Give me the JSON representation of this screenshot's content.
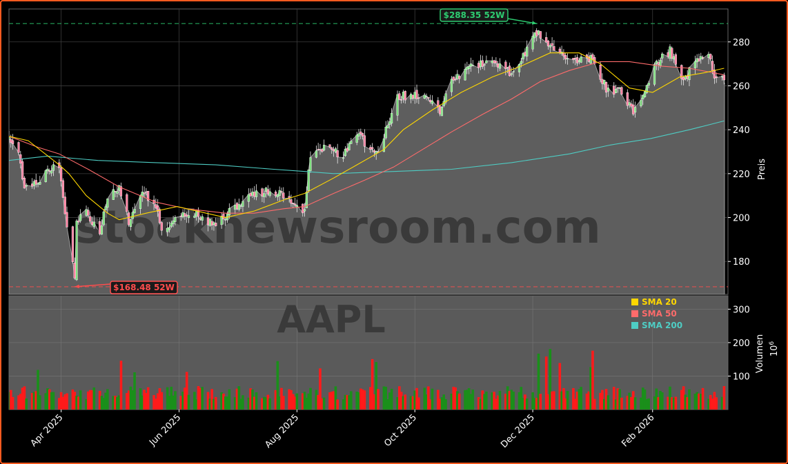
{
  "chart_data": {
    "type": "candlestick",
    "ticker": "AAPL",
    "watermark": "stocknewsroom.com",
    "price_axis": {
      "label": "Preis",
      "ylim": [
        165,
        295
      ],
      "ticks": [
        180,
        200,
        220,
        240,
        260,
        280
      ]
    },
    "volume_axis": {
      "label": "Volumen",
      "unit_label": "10^6",
      "ylim": [
        0,
        340
      ],
      "ticks": [
        100,
        200,
        300
      ]
    },
    "x_axis": {
      "ticks": [
        "Apr 2025",
        "Jun 2025",
        "Aug 2025",
        "Oct 2025",
        "Dec 2025",
        "Feb 2026"
      ],
      "range": [
        "2025-03-05",
        "2026-03-12"
      ]
    },
    "annotations": {
      "high_52w": {
        "value": 288.35,
        "date": "2025-12-03",
        "label": "$288.35 52W",
        "color": "#2ecc71"
      },
      "low_52w": {
        "value": 168.48,
        "date": "2025-04-08",
        "label": "$168.48 52W",
        "color": "#ff4d4d"
      }
    },
    "current_price": 261.3,
    "legend": {
      "placement": "lower-right of price panel",
      "items": [
        {
          "label": "SMA 20",
          "color": "#ffd700"
        },
        {
          "label": "SMA 50",
          "color": "#ff6b6b"
        },
        {
          "label": "SMA 200",
          "color": "#4ecdc4"
        }
      ]
    },
    "series": {
      "close_key_points": [
        [
          "2025-03-05",
          235
        ],
        [
          "2025-03-10",
          229
        ],
        [
          "2025-03-13",
          214
        ],
        [
          "2025-03-20",
          215
        ],
        [
          "2025-03-25",
          223
        ],
        [
          "2025-03-31",
          222
        ],
        [
          "2025-04-03",
          203
        ],
        [
          "2025-04-08",
          172
        ],
        [
          "2025-04-09",
          198
        ],
        [
          "2025-04-14",
          202
        ],
        [
          "2025-04-21",
          193
        ],
        [
          "2025-04-25",
          209
        ],
        [
          "2025-05-01",
          213
        ],
        [
          "2025-05-06",
          198
        ],
        [
          "2025-05-13",
          212
        ],
        [
          "2025-05-20",
          206
        ],
        [
          "2025-05-23",
          195
        ],
        [
          "2025-06-02",
          201
        ],
        [
          "2025-06-10",
          202
        ],
        [
          "2025-06-20",
          196
        ],
        [
          "2025-06-30",
          205
        ],
        [
          "2025-07-10",
          211
        ],
        [
          "2025-07-20",
          212
        ],
        [
          "2025-07-31",
          207
        ],
        [
          "2025-08-05",
          203
        ],
        [
          "2025-08-08",
          229
        ],
        [
          "2025-08-15",
          232
        ],
        [
          "2025-08-25",
          228
        ],
        [
          "2025-09-02",
          238
        ],
        [
          "2025-09-10",
          228
        ],
        [
          "2025-09-15",
          237
        ],
        [
          "2025-09-22",
          255
        ],
        [
          "2025-10-01",
          256
        ],
        [
          "2025-10-08",
          256
        ],
        [
          "2025-10-14",
          247
        ],
        [
          "2025-10-20",
          262
        ],
        [
          "2025-10-28",
          268
        ],
        [
          "2025-11-01",
          270
        ],
        [
          "2025-11-10",
          270
        ],
        [
          "2025-11-20",
          266
        ],
        [
          "2025-12-03",
          284
        ],
        [
          "2025-12-10",
          278
        ],
        [
          "2025-12-20",
          272
        ],
        [
          "2025-12-31",
          272
        ],
        [
          "2026-01-08",
          259
        ],
        [
          "2026-01-16",
          257
        ],
        [
          "2026-01-22",
          248
        ],
        [
          "2026-01-28",
          258
        ],
        [
          "2026-02-03",
          270
        ],
        [
          "2026-02-10",
          276
        ],
        [
          "2026-02-17",
          263
        ],
        [
          "2026-02-24",
          271
        ],
        [
          "2026-03-02",
          273
        ],
        [
          "2026-03-06",
          262
        ],
        [
          "2026-03-10",
          263
        ]
      ],
      "sma20": [
        [
          "2025-03-05",
          237
        ],
        [
          "2025-03-15",
          235
        ],
        [
          "2025-03-31",
          224
        ],
        [
          "2025-04-05",
          220
        ],
        [
          "2025-04-14",
          210
        ],
        [
          "2025-04-25",
          202
        ],
        [
          "2025-05-01",
          199
        ],
        [
          "2025-05-15",
          202
        ],
        [
          "2025-05-31",
          205
        ],
        [
          "2025-06-15",
          202
        ],
        [
          "2025-06-25",
          200
        ],
        [
          "2025-07-10",
          203
        ],
        [
          "2025-07-25",
          208
        ],
        [
          "2025-08-05",
          211
        ],
        [
          "2025-08-20",
          218
        ],
        [
          "2025-09-01",
          224
        ],
        [
          "2025-09-15",
          231
        ],
        [
          "2025-09-25",
          240
        ],
        [
          "2025-10-10",
          249
        ],
        [
          "2025-10-25",
          257
        ],
        [
          "2025-11-10",
          264
        ],
        [
          "2025-11-25",
          269
        ],
        [
          "2025-12-10",
          275
        ],
        [
          "2025-12-25",
          275
        ],
        [
          "2026-01-05",
          270
        ],
        [
          "2026-01-20",
          259
        ],
        [
          "2026-02-01",
          257
        ],
        [
          "2026-02-15",
          264
        ],
        [
          "2026-02-28",
          266
        ],
        [
          "2026-03-10",
          268
        ]
      ],
      "sma50": [
        [
          "2025-03-05",
          237
        ],
        [
          "2025-03-20",
          232
        ],
        [
          "2025-03-31",
          229
        ],
        [
          "2025-04-15",
          222
        ],
        [
          "2025-05-01",
          214
        ],
        [
          "2025-05-20",
          207
        ],
        [
          "2025-06-05",
          204
        ],
        [
          "2025-06-25",
          202
        ],
        [
          "2025-07-10",
          202
        ],
        [
          "2025-07-25",
          204
        ],
        [
          "2025-08-05",
          205
        ],
        [
          "2025-08-20",
          211
        ],
        [
          "2025-09-05",
          217
        ],
        [
          "2025-09-20",
          223
        ],
        [
          "2025-10-05",
          231
        ],
        [
          "2025-10-20",
          239
        ],
        [
          "2025-11-05",
          247
        ],
        [
          "2025-11-20",
          254
        ],
        [
          "2025-12-05",
          262
        ],
        [
          "2025-12-20",
          267
        ],
        [
          "2026-01-05",
          271
        ],
        [
          "2026-01-20",
          271
        ],
        [
          "2026-02-05",
          269
        ],
        [
          "2026-02-20",
          268
        ],
        [
          "2026-03-10",
          265
        ]
      ],
      "sma200": [
        [
          "2025-03-05",
          226
        ],
        [
          "2025-03-25",
          228
        ],
        [
          "2025-04-20",
          226
        ],
        [
          "2025-05-20",
          225
        ],
        [
          "2025-06-20",
          224
        ],
        [
          "2025-07-20",
          222
        ],
        [
          "2025-08-05",
          221
        ],
        [
          "2025-08-20",
          220
        ],
        [
          "2025-09-20",
          221
        ],
        [
          "2025-10-20",
          222
        ],
        [
          "2025-11-20",
          225
        ],
        [
          "2025-12-20",
          229
        ],
        [
          "2026-01-10",
          233
        ],
        [
          "2026-01-31",
          236
        ],
        [
          "2026-02-20",
          240
        ],
        [
          "2026-03-10",
          244
        ]
      ]
    }
  }
}
